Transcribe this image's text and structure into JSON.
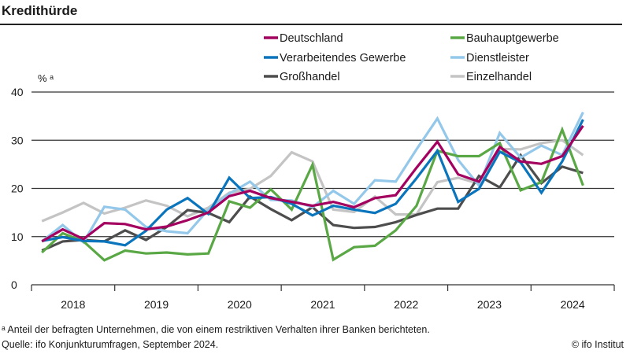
{
  "title": "Kredithürde",
  "footnote": "ᵃ Anteil der befragten Unternehmen, die von einem restriktiven Verhalten ihrer Banken berichteten.",
  "source": "Quelle: ifo Konjunkturumfragen, September 2024.",
  "copyright": "© ifo Institut",
  "chart_data": {
    "type": "line",
    "title": "Kredithürde",
    "ylabel": "% ᵃ",
    "ylim": [
      0,
      40
    ],
    "yticks": [
      0,
      10,
      20,
      30,
      40
    ],
    "grid": true,
    "legend_placement": "top-right",
    "year_labels": [
      "2018",
      "2019",
      "2020",
      "2021",
      "2022",
      "2023",
      "2024"
    ],
    "x": [
      "2018-Q1",
      "2018-Q2",
      "2018-Q3",
      "2018-Q4",
      "2019-Q1",
      "2019-Q2",
      "2019-Q3",
      "2019-Q4",
      "2020-Q1",
      "2020-Q2",
      "2020-Q3",
      "2020-Q4",
      "2021-Q1",
      "2021-Q2",
      "2021-Q3",
      "2021-Q4",
      "2022-Q1",
      "2022-Q2",
      "2022-Q3",
      "2022-Q4",
      "2023-Q1",
      "2023-Q2",
      "2023-Q3",
      "2023-Q4",
      "2024-Q1",
      "2024-Q2",
      "2024-Q3"
    ],
    "series": [
      {
        "name": "Einzelhandel",
        "color": "#c4c4c4",
        "values": [
          13.2,
          15,
          17,
          14.8,
          16,
          17.5,
          16.4,
          14.2,
          16,
          19.1,
          19.9,
          22.6,
          27.5,
          25.6,
          15.6,
          15.1,
          18.3,
          14.6,
          14.6,
          21.3,
          22.2,
          21,
          28.2,
          28.1,
          29.4,
          30,
          26.9
        ]
      },
      {
        "name": "Großhandel",
        "color": "#4d4d4d",
        "values": [
          7.1,
          9,
          9.3,
          9,
          11.3,
          9.3,
          12,
          15.5,
          14.9,
          13,
          18.3,
          15.7,
          13.4,
          16.1,
          12.4,
          11.8,
          12,
          13,
          14.5,
          15.8,
          15.8,
          22.6,
          20.2,
          26.9,
          21.1,
          24.5,
          23.2
        ]
      },
      {
        "name": "Dienstleister",
        "color": "#94c8ea",
        "values": [
          9,
          12.4,
          8.8,
          16.2,
          15.6,
          12,
          11.1,
          10.7,
          15.6,
          18.9,
          21.4,
          17.6,
          17.5,
          16.1,
          19.5,
          16.8,
          21.7,
          21.4,
          28.1,
          34.5,
          25.9,
          20.6,
          31.5,
          26.4,
          28.9,
          26.9,
          35.8
        ]
      },
      {
        "name": "Bauhauptgewerbe",
        "color": "#5aa845",
        "values": [
          6.7,
          10.7,
          9,
          5.1,
          7.1,
          6.5,
          6.7,
          6.3,
          6.5,
          17.3,
          16,
          19.8,
          15.6,
          24.9,
          5.2,
          7.8,
          8.1,
          11.3,
          16.4,
          27.8,
          26.7,
          26.7,
          29.4,
          19.6,
          21.3,
          32.2,
          20.6
        ]
      },
      {
        "name": "Verarbeitendes Gewerbe",
        "color": "#0a75bd",
        "values": [
          9.1,
          9.9,
          9.1,
          9,
          8.2,
          11.2,
          15.6,
          18,
          14.7,
          22.2,
          18,
          18.2,
          16.8,
          14.4,
          16.4,
          15.6,
          14.9,
          16.8,
          22.1,
          27.8,
          17.2,
          19.9,
          27.6,
          25.4,
          19.1,
          25.6,
          34.3
        ]
      },
      {
        "name": "Deutschland",
        "color": "#a3005f",
        "values": [
          9,
          11.5,
          9.5,
          12.8,
          12.6,
          11.5,
          12.1,
          13.4,
          15,
          18.4,
          19.5,
          18,
          17.2,
          16.4,
          17.2,
          16.1,
          18,
          18.6,
          24.3,
          29.7,
          22.9,
          21.4,
          28.6,
          25.6,
          25.1,
          26.7,
          33
        ]
      }
    ],
    "legend_order": [
      "Deutschland",
      "Bauhauptgewerbe",
      "Verarbeitendes Gewerbe",
      "Dienstleister",
      "Großhandel",
      "Einzelhandel"
    ]
  }
}
